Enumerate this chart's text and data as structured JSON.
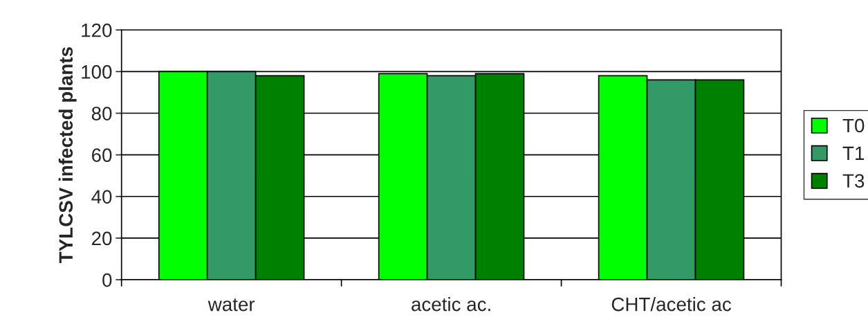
{
  "chart_data": {
    "type": "bar",
    "ylabel": "TYLCSV infected plants",
    "categories": [
      "water",
      "acetic ac.",
      "CHT/acetic ac"
    ],
    "series": [
      {
        "name": "T0",
        "color": "#00ff00",
        "values": [
          100,
          99,
          98
        ]
      },
      {
        "name": "T1",
        "color": "#339966",
        "values": [
          100,
          98,
          96
        ]
      },
      {
        "name": "T3",
        "color": "#008000",
        "values": [
          98,
          99,
          96
        ]
      }
    ],
    "ylim": [
      0,
      120
    ],
    "yticks": [
      0,
      20,
      40,
      60,
      80,
      100,
      120
    ],
    "grid": "y",
    "legend": "right"
  }
}
